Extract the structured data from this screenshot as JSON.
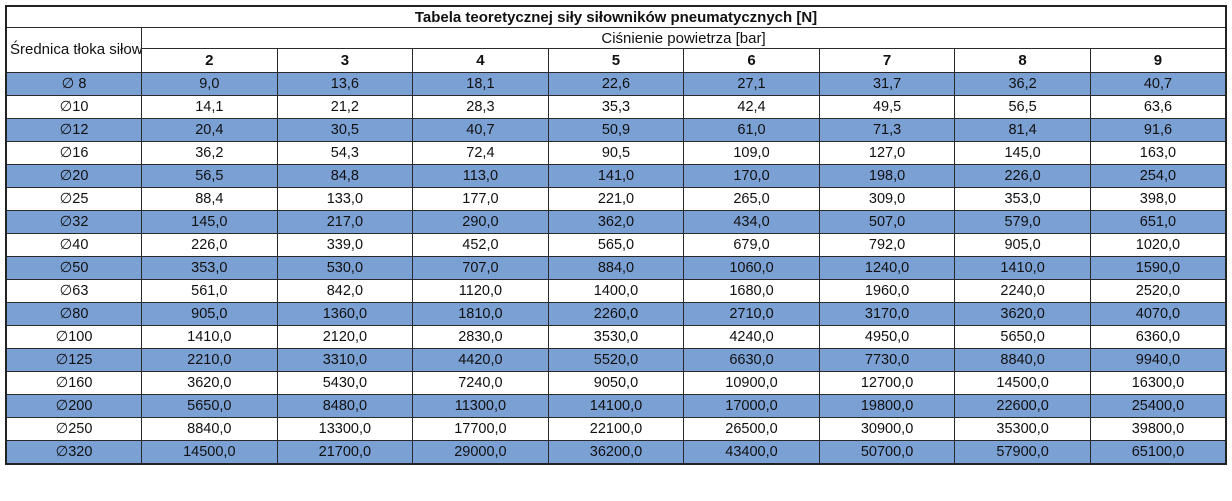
{
  "table": {
    "title": "Tabela teoretycznej siły siłowników pneumatycznych [N]",
    "diameter_header": "Średnica tłoka siłownika",
    "pressure_header": "Ciśnienie powietrza [bar]",
    "pressure_columns": [
      "2",
      "3",
      "4",
      "5",
      "6",
      "7",
      "8",
      "9"
    ],
    "rows": [
      {
        "diameter": "∅ 8",
        "values": [
          "9,0",
          "13,6",
          "18,1",
          "22,6",
          "27,1",
          "31,7",
          "36,2",
          "40,7"
        ]
      },
      {
        "diameter": "∅10",
        "values": [
          "14,1",
          "21,2",
          "28,3",
          "35,3",
          "42,4",
          "49,5",
          "56,5",
          "63,6"
        ]
      },
      {
        "diameter": "∅12",
        "values": [
          "20,4",
          "30,5",
          "40,7",
          "50,9",
          "61,0",
          "71,3",
          "81,4",
          "91,6"
        ]
      },
      {
        "diameter": "∅16",
        "values": [
          "36,2",
          "54,3",
          "72,4",
          "90,5",
          "109,0",
          "127,0",
          "145,0",
          "163,0"
        ]
      },
      {
        "diameter": "∅20",
        "values": [
          "56,5",
          "84,8",
          "113,0",
          "141,0",
          "170,0",
          "198,0",
          "226,0",
          "254,0"
        ]
      },
      {
        "diameter": "∅25",
        "values": [
          "88,4",
          "133,0",
          "177,0",
          "221,0",
          "265,0",
          "309,0",
          "353,0",
          "398,0"
        ]
      },
      {
        "diameter": "∅32",
        "values": [
          "145,0",
          "217,0",
          "290,0",
          "362,0",
          "434,0",
          "507,0",
          "579,0",
          "651,0"
        ]
      },
      {
        "diameter": "∅40",
        "values": [
          "226,0",
          "339,0",
          "452,0",
          "565,0",
          "679,0",
          "792,0",
          "905,0",
          "1020,0"
        ]
      },
      {
        "diameter": "∅50",
        "values": [
          "353,0",
          "530,0",
          "707,0",
          "884,0",
          "1060,0",
          "1240,0",
          "1410,0",
          "1590,0"
        ]
      },
      {
        "diameter": "∅63",
        "values": [
          "561,0",
          "842,0",
          "1120,0",
          "1400,0",
          "1680,0",
          "1960,0",
          "2240,0",
          "2520,0"
        ]
      },
      {
        "diameter": "∅80",
        "values": [
          "905,0",
          "1360,0",
          "1810,0",
          "2260,0",
          "2710,0",
          "3170,0",
          "3620,0",
          "4070,0"
        ]
      },
      {
        "diameter": "∅100",
        "values": [
          "1410,0",
          "2120,0",
          "2830,0",
          "3530,0",
          "4240,0",
          "4950,0",
          "5650,0",
          "6360,0"
        ]
      },
      {
        "diameter": "∅125",
        "values": [
          "2210,0",
          "3310,0",
          "4420,0",
          "5520,0",
          "6630,0",
          "7730,0",
          "8840,0",
          "9940,0"
        ]
      },
      {
        "diameter": "∅160",
        "values": [
          "3620,0",
          "5430,0",
          "7240,0",
          "9050,0",
          "10900,0",
          "12700,0",
          "14500,0",
          "16300,0"
        ]
      },
      {
        "diameter": "∅200",
        "values": [
          "5650,0",
          "8480,0",
          "11300,0",
          "14100,0",
          "17000,0",
          "19800,0",
          "22600,0",
          "25400,0"
        ]
      },
      {
        "diameter": "∅250",
        "values": [
          "8840,0",
          "13300,0",
          "17700,0",
          "22100,0",
          "26500,0",
          "30900,0",
          "35300,0",
          "39800,0"
        ]
      },
      {
        "diameter": "∅320",
        "values": [
          "14500,0",
          "21700,0",
          "29000,0",
          "36200,0",
          "43400,0",
          "50700,0",
          "57900,0",
          "65100,0"
        ]
      }
    ]
  },
  "colors": {
    "row_highlight_blue": "#7BA0D4",
    "border_dark": "#2a2a2a",
    "background": "#ffffff",
    "text": "#111111"
  },
  "chart_data": {
    "type": "table",
    "title": "Tabela teoretycznej siły siłowników pneumatycznych [N]",
    "xlabel": "Ciśnienie powietrza [bar]",
    "ylabel": "Średnica tłoka siłownika",
    "unit": "N",
    "x": [
      2,
      3,
      4,
      5,
      6,
      7,
      8,
      9
    ],
    "series": [
      {
        "name": "∅8",
        "values": [
          9.0,
          13.6,
          18.1,
          22.6,
          27.1,
          31.7,
          36.2,
          40.7
        ]
      },
      {
        "name": "∅10",
        "values": [
          14.1,
          21.2,
          28.3,
          35.3,
          42.4,
          49.5,
          56.5,
          63.6
        ]
      },
      {
        "name": "∅12",
        "values": [
          20.4,
          30.5,
          40.7,
          50.9,
          61.0,
          71.3,
          81.4,
          91.6
        ]
      },
      {
        "name": "∅16",
        "values": [
          36.2,
          54.3,
          72.4,
          90.5,
          109.0,
          127.0,
          145.0,
          163.0
        ]
      },
      {
        "name": "∅20",
        "values": [
          56.5,
          84.8,
          113.0,
          141.0,
          170.0,
          198.0,
          226.0,
          254.0
        ]
      },
      {
        "name": "∅25",
        "values": [
          88.4,
          133.0,
          177.0,
          221.0,
          265.0,
          309.0,
          353.0,
          398.0
        ]
      },
      {
        "name": "∅32",
        "values": [
          145.0,
          217.0,
          290.0,
          362.0,
          434.0,
          507.0,
          579.0,
          651.0
        ]
      },
      {
        "name": "∅40",
        "values": [
          226.0,
          339.0,
          452.0,
          565.0,
          679.0,
          792.0,
          905.0,
          1020.0
        ]
      },
      {
        "name": "∅50",
        "values": [
          353.0,
          530.0,
          707.0,
          884.0,
          1060.0,
          1240.0,
          1410.0,
          1590.0
        ]
      },
      {
        "name": "∅63",
        "values": [
          561.0,
          842.0,
          1120.0,
          1400.0,
          1680.0,
          1960.0,
          2240.0,
          2520.0
        ]
      },
      {
        "name": "∅80",
        "values": [
          905.0,
          1360.0,
          1810.0,
          2260.0,
          2710.0,
          3170.0,
          3620.0,
          4070.0
        ]
      },
      {
        "name": "∅100",
        "values": [
          1410.0,
          2120.0,
          2830.0,
          3530.0,
          4240.0,
          4950.0,
          5650.0,
          6360.0
        ]
      },
      {
        "name": "∅125",
        "values": [
          2210.0,
          3310.0,
          4420.0,
          5520.0,
          6630.0,
          7730.0,
          8840.0,
          9940.0
        ]
      },
      {
        "name": "∅160",
        "values": [
          3620.0,
          5430.0,
          7240.0,
          9050.0,
          10900.0,
          12700.0,
          14500.0,
          16300.0
        ]
      },
      {
        "name": "∅200",
        "values": [
          5650.0,
          8480.0,
          11300.0,
          14100.0,
          17000.0,
          19800.0,
          22600.0,
          25400.0
        ]
      },
      {
        "name": "∅250",
        "values": [
          8840.0,
          13300.0,
          17700.0,
          22100.0,
          26500.0,
          30900.0,
          35300.0,
          39800.0
        ]
      },
      {
        "name": "∅320",
        "values": [
          14500.0,
          21700.0,
          29000.0,
          36200.0,
          43400.0,
          50700.0,
          57900.0,
          65100.0
        ]
      }
    ],
    "layout": {
      "highlighted_rows": "alternating, first row blue",
      "grid": "full cell borders",
      "legend": "none"
    }
  }
}
